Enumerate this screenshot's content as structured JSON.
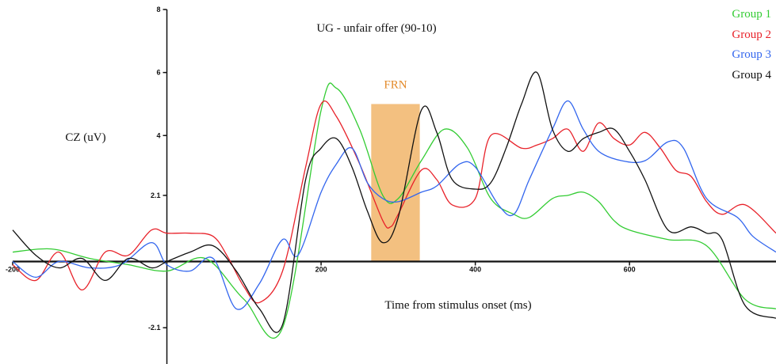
{
  "chart_data": {
    "type": "line",
    "title": "UG - unfair offer (90-10)",
    "xlabel": "Time from stimulus onset (ms)",
    "ylabel": "CZ (uV)",
    "xlim": [
      -200,
      790
    ],
    "ylim": [
      -2.9,
      8
    ],
    "x_ticks": [
      -200,
      200,
      400,
      600
    ],
    "x_tick_labels": [
      "-200",
      "200",
      "400",
      "600"
    ],
    "y_ticks": [
      8,
      6,
      4,
      2.1,
      -2.1
    ],
    "y_tick_labels": [
      "8",
      "6",
      "4",
      "2.1",
      "-2.1"
    ],
    "grid": false,
    "legend_position": "top-right",
    "annotation": {
      "text": "FRN",
      "x_start": 265,
      "x_end": 328,
      "y_top": 5,
      "y_bottom": 0,
      "color": "#f0b060"
    },
    "series": [
      {
        "name": "Group 1",
        "color": "#33cc33",
        "x": [
          -200,
          -150,
          -100,
          -50,
          0,
          50,
          100,
          150,
          200,
          220,
          250,
          280,
          300,
          330,
          360,
          390,
          420,
          450,
          470,
          500,
          520,
          540,
          560,
          580,
          600,
          650,
          700,
          750,
          790
        ],
        "y": [
          0.3,
          0.4,
          0.1,
          -0.1,
          -0.3,
          0.1,
          -1.2,
          -2.1,
          4.8,
          5.5,
          4.2,
          2.1,
          2.0,
          3.2,
          4.2,
          3.6,
          2.0,
          1.5,
          1.4,
          2.0,
          2.1,
          2.2,
          1.9,
          1.3,
          1.0,
          0.7,
          0.5,
          -1.2,
          -1.5
        ]
      },
      {
        "name": "Group 2",
        "color": "#e8222a",
        "x": [
          -200,
          -170,
          -140,
          -110,
          -80,
          -50,
          -20,
          0,
          30,
          60,
          80,
          100,
          120,
          150,
          180,
          200,
          220,
          250,
          280,
          290,
          300,
          330,
          350,
          370,
          400,
          420,
          460,
          480,
          500,
          520,
          540,
          560,
          580,
          600,
          620,
          640,
          660,
          680,
          700,
          720,
          750,
          790
        ],
        "y": [
          -0.1,
          -0.6,
          0.3,
          -0.9,
          0.3,
          0.2,
          1.0,
          0.9,
          0.9,
          0.8,
          0.1,
          -0.8,
          -1.3,
          -0.3,
          3.0,
          5.0,
          4.6,
          3.1,
          1.3,
          1.1,
          1.5,
          2.9,
          2.6,
          1.8,
          2.0,
          4.0,
          3.6,
          3.7,
          3.9,
          4.2,
          3.5,
          4.4,
          3.9,
          3.7,
          4.1,
          3.6,
          2.9,
          2.7,
          1.9,
          1.5,
          1.8,
          0.9
        ]
      },
      {
        "name": "Group 3",
        "color": "#3366ee",
        "x": [
          -200,
          -170,
          -140,
          -100,
          -60,
          -20,
          0,
          30,
          60,
          90,
          120,
          150,
          170,
          200,
          220,
          240,
          260,
          280,
          300,
          330,
          350,
          380,
          400,
          430,
          450,
          470,
          500,
          520,
          540,
          560,
          590,
          620,
          650,
          670,
          700,
          740,
          760,
          790
        ],
        "y": [
          0,
          -0.5,
          0,
          -0.2,
          -0.1,
          0.6,
          -0.1,
          -0.3,
          0.1,
          -1.5,
          -0.7,
          0.7,
          0.2,
          2.2,
          3.1,
          3.6,
          2.5,
          2.0,
          1.9,
          2.2,
          2.4,
          3.1,
          3.0,
          1.8,
          1.5,
          2.6,
          4.2,
          5.1,
          4.2,
          3.5,
          3.2,
          3.2,
          3.8,
          3.6,
          2.0,
          1.4,
          0.8,
          0.3
        ]
      },
      {
        "name": "Group 4",
        "color": "#111111",
        "x": [
          -200,
          -170,
          -140,
          -110,
          -80,
          -50,
          -20,
          0,
          30,
          60,
          90,
          120,
          150,
          180,
          200,
          220,
          240,
          260,
          280,
          300,
          330,
          350,
          370,
          400,
          420,
          440,
          460,
          480,
          500,
          520,
          540,
          560,
          580,
          600,
          620,
          650,
          680,
          700,
          720,
          750,
          790
        ],
        "y": [
          1.0,
          0.2,
          -0.2,
          0.1,
          -0.6,
          0.1,
          -0.2,
          0.0,
          0.3,
          0.5,
          -0.3,
          -1.5,
          -2.0,
          2.6,
          3.6,
          3.9,
          3.0,
          1.6,
          0.6,
          1.4,
          4.8,
          4.1,
          2.6,
          2.3,
          2.5,
          3.6,
          5.0,
          6.0,
          4.2,
          3.5,
          3.9,
          4.1,
          4.2,
          3.5,
          2.6,
          1.0,
          1.1,
          0.9,
          0.7,
          -1.4,
          -1.8
        ]
      }
    ]
  }
}
